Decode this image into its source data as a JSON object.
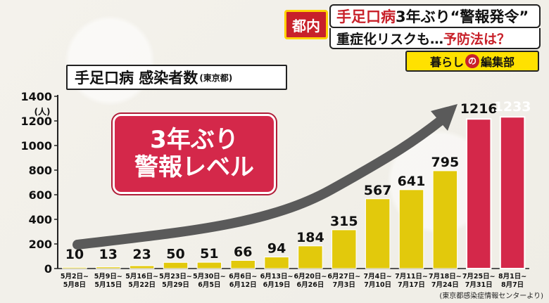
{
  "caption": {
    "tag": "都内",
    "line1_red": "手足口病",
    "line1_black": "3年ぶり“警報発令”",
    "line2_black": "重症化リスクも…",
    "line2_red": "予防法は？",
    "program_part1": "暮らし",
    "program_no": "の",
    "program_part2": "編集部"
  },
  "title_box": {
    "main": "手足口病 感染者数",
    "sub": "(東京都)"
  },
  "banner": {
    "line1": "3年ぶり",
    "line2": "警報レベル"
  },
  "source": "(東京都感染症情報センターより)",
  "colors": {
    "bar_yellow": "#e2c90c",
    "bar_red": "#d4284a",
    "arrow": "#5a5a5a"
  },
  "chart_data": {
    "type": "bar",
    "ylabel": "(人)",
    "ylim": [
      0,
      1400
    ],
    "yticks": [
      0,
      200,
      400,
      600,
      800,
      1000,
      1200,
      1400
    ],
    "grid": false,
    "categories": [
      [
        "5月2日~",
        "5月8日"
      ],
      [
        "5月9日~",
        "5月15日"
      ],
      [
        "5月16日~",
        "5月22日"
      ],
      [
        "5月23日~",
        "5月29日"
      ],
      [
        "5月30日~",
        "6月5日"
      ],
      [
        "6月6日~",
        "6月12日"
      ],
      [
        "6月13日~",
        "6月19日"
      ],
      [
        "6月20日~",
        "6月26日"
      ],
      [
        "6月27日~",
        "7月3日"
      ],
      [
        "7月4日~",
        "7月10日"
      ],
      [
        "7月11日~",
        "7月17日"
      ],
      [
        "7月18日~",
        "7月24日"
      ],
      [
        "7月25日~",
        "7月31日"
      ],
      [
        "8月1日~",
        "8月7日"
      ]
    ],
    "values": [
      10,
      13,
      23,
      50,
      51,
      66,
      94,
      184,
      315,
      567,
      641,
      795,
      1216,
      1233
    ],
    "highlight_from_index": 12
  }
}
